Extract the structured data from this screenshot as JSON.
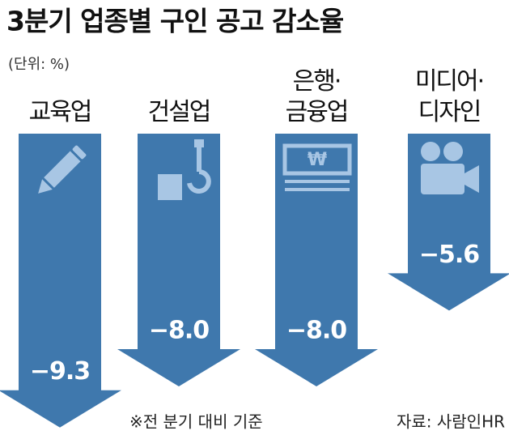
{
  "chart_data": {
    "type": "bar",
    "title": "3분기 업종별 구인 공고 감소율",
    "subtitle": "(단위: %)",
    "categories": [
      "교육업",
      "건설업",
      "은행·\n금융업",
      "미디어·\n디자인"
    ],
    "values": [
      -9.3,
      -8.0,
      -8.0,
      -5.6
    ],
    "value_labels": [
      "−9.3",
      "−8.0",
      "−8.0",
      "−5.6"
    ],
    "color": "#3f78ad",
    "ylim": [
      -10,
      0
    ],
    "note": "※전 분기 대비 기준",
    "source": "자료: 사람인HR"
  }
}
